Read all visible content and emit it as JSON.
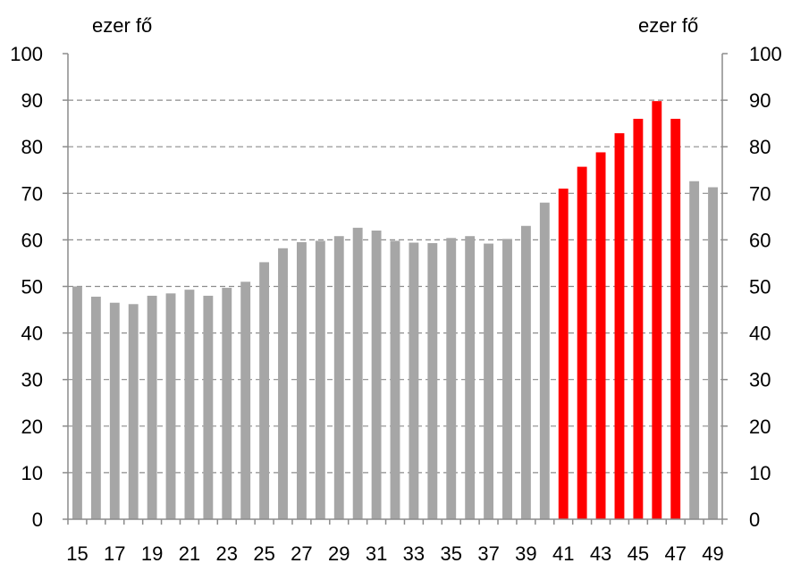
{
  "chart_data": {
    "type": "bar",
    "y_unit_left": "ezer fő",
    "y_unit_right": "ezer fő",
    "ylim": [
      0,
      100
    ],
    "yticks": [
      0,
      10,
      20,
      30,
      40,
      50,
      60,
      70,
      80,
      90,
      100
    ],
    "grid": "horizontal dashed",
    "x_tick_labels": [
      "15",
      "17",
      "19",
      "21",
      "23",
      "25",
      "27",
      "29",
      "31",
      "33",
      "35",
      "37",
      "39",
      "41",
      "43",
      "45",
      "47",
      "49"
    ],
    "categories": [
      "15",
      "16",
      "17",
      "18",
      "19",
      "20",
      "21",
      "22",
      "23",
      "24",
      "25",
      "26",
      "27",
      "28",
      "29",
      "30",
      "31",
      "32",
      "33",
      "34",
      "35",
      "36",
      "37",
      "38",
      "39",
      "40",
      "41",
      "42",
      "43",
      "44",
      "45",
      "46",
      "47",
      "48",
      "49"
    ],
    "values": [
      50.0,
      47.8,
      46.5,
      46.2,
      48.0,
      48.5,
      49.3,
      48.0,
      49.7,
      51.0,
      55.2,
      58.2,
      59.5,
      59.8,
      60.8,
      62.6,
      62.0,
      59.8,
      59.4,
      59.3,
      60.4,
      60.8,
      59.2,
      60.2,
      63.0,
      68.0,
      71.0,
      75.7,
      78.8,
      82.9,
      86.0,
      89.8,
      86.0,
      72.6,
      71.3
    ],
    "colors": [
      "#a6a6a6",
      "#a6a6a6",
      "#a6a6a6",
      "#a6a6a6",
      "#a6a6a6",
      "#a6a6a6",
      "#a6a6a6",
      "#a6a6a6",
      "#a6a6a6",
      "#a6a6a6",
      "#a6a6a6",
      "#a6a6a6",
      "#a6a6a6",
      "#a6a6a6",
      "#a6a6a6",
      "#a6a6a6",
      "#a6a6a6",
      "#a6a6a6",
      "#a6a6a6",
      "#a6a6a6",
      "#a6a6a6",
      "#a6a6a6",
      "#a6a6a6",
      "#a6a6a6",
      "#a6a6a6",
      "#a6a6a6",
      "#ff0000",
      "#ff0000",
      "#ff0000",
      "#ff0000",
      "#ff0000",
      "#ff0000",
      "#ff0000",
      "#a6a6a6",
      "#a6a6a6"
    ]
  }
}
